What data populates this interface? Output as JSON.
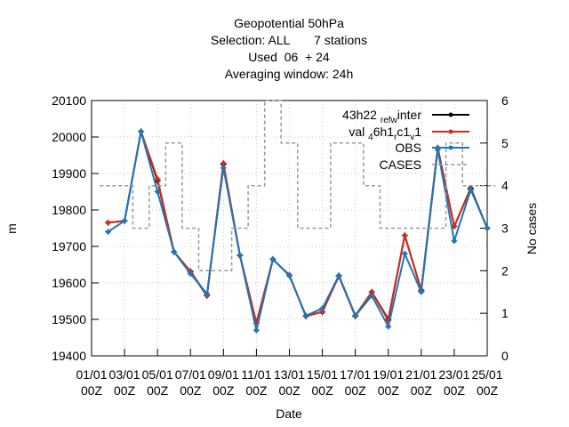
{
  "chart_data": {
    "type": "line",
    "title_lines": [
      "Geopotential 50hPa",
      "Selection: ALL       7 stations",
      "Used  06  + 24",
      "Averaging window: 24h"
    ],
    "xlabel": "Date",
    "ylabel": "m",
    "y2label": "No cases",
    "ylim": [
      19400,
      20100
    ],
    "yticks": [
      19400,
      19500,
      19600,
      19700,
      19800,
      19900,
      20000,
      20100
    ],
    "y2lim": [
      0,
      6
    ],
    "y2ticks": [
      0,
      1,
      2,
      3,
      4,
      5,
      6
    ],
    "xlim": [
      0,
      24
    ],
    "xticks": [
      {
        "x": 0,
        "top": "01/01",
        "bottom": "00Z"
      },
      {
        "x": 2,
        "top": "03/01",
        "bottom": "00Z"
      },
      {
        "x": 4,
        "top": "05/01",
        "bottom": "00Z"
      },
      {
        "x": 6,
        "top": "07/01",
        "bottom": "00Z"
      },
      {
        "x": 8,
        "top": "09/01",
        "bottom": "00Z"
      },
      {
        "x": 10,
        "top": "11/01",
        "bottom": "00Z"
      },
      {
        "x": 12,
        "top": "13/01",
        "bottom": "00Z"
      },
      {
        "x": 14,
        "top": "15/01",
        "bottom": "00Z"
      },
      {
        "x": 16,
        "top": "17/01",
        "bottom": "00Z"
      },
      {
        "x": 18,
        "top": "19/01",
        "bottom": "00Z"
      },
      {
        "x": 20,
        "top": "21/01",
        "bottom": "00Z"
      },
      {
        "x": 22,
        "top": "23/01",
        "bottom": "00Z"
      },
      {
        "x": 24,
        "top": "25/01",
        "bottom": "00Z"
      }
    ],
    "legend_position": "top-right",
    "series": [
      {
        "name": "43h22_ref_winter",
        "legend_parts": [
          "43h22",
          "ref",
          "w",
          "inter"
        ],
        "color": "#000000",
        "axis": "y1",
        "x": [
          1,
          2,
          3,
          4,
          5,
          6,
          7,
          8,
          9,
          10,
          11,
          12,
          13,
          14,
          15,
          16,
          17,
          18,
          19,
          20,
          21,
          22,
          23,
          24
        ],
        "values": [
          19765,
          19770,
          20015,
          19880,
          19685,
          19630,
          19565,
          19925,
          19675,
          19490,
          19665,
          19620,
          19510,
          19520,
          19620,
          19510,
          19575,
          19500,
          19730,
          19580,
          19970,
          19755,
          19860,
          19750
        ]
      },
      {
        "name": "val_46h1_rc1_v1",
        "legend_parts": [
          "val",
          "4",
          "6h1",
          "r",
          "c1",
          "v",
          "1"
        ],
        "color": "#d62a1e",
        "axis": "y1",
        "x": [
          1,
          2,
          3,
          4,
          5,
          6,
          7,
          8,
          9,
          10,
          11,
          12,
          13,
          14,
          15,
          16,
          17,
          18,
          19,
          20,
          21,
          22,
          23,
          24
        ],
        "values": [
          19765,
          19770,
          20015,
          19885,
          19685,
          19632,
          19566,
          19928,
          19676,
          19490,
          19664,
          19622,
          19508,
          19521,
          19618,
          19508,
          19574,
          19497,
          19730,
          19578,
          19970,
          19755,
          19858,
          19750
        ]
      },
      {
        "name": "OBS",
        "color": "#1f77b4",
        "axis": "y1",
        "x": [
          1,
          2,
          3,
          4,
          5,
          6,
          7,
          8,
          9,
          10,
          11,
          12,
          13,
          14,
          15,
          16,
          17,
          18,
          19,
          20,
          21,
          22,
          23,
          24
        ],
        "values": [
          19740,
          19770,
          20015,
          19850,
          19685,
          19625,
          19570,
          19915,
          19675,
          19470,
          19665,
          19620,
          19510,
          19530,
          19620,
          19510,
          19565,
          19480,
          19680,
          19575,
          19965,
          19715,
          19855,
          19750
        ]
      },
      {
        "name": "CASES",
        "color": "#999999",
        "axis": "y2",
        "dashed": true,
        "steps": [
          [
            1,
            4
          ],
          [
            2,
            4
          ],
          [
            3,
            3
          ],
          [
            4,
            4
          ],
          [
            5,
            5
          ],
          [
            6,
            3
          ],
          [
            7,
            2
          ],
          [
            8,
            2
          ],
          [
            9,
            3
          ],
          [
            10,
            4
          ],
          [
            11,
            6
          ],
          [
            12,
            5
          ],
          [
            13,
            3
          ],
          [
            14,
            3
          ],
          [
            15,
            5
          ],
          [
            16,
            5
          ],
          [
            17,
            4
          ],
          [
            18,
            3
          ],
          [
            19,
            3
          ],
          [
            20,
            3
          ],
          [
            21,
            3
          ],
          [
            22,
            5
          ],
          [
            23,
            4
          ],
          [
            24,
            4
          ]
        ]
      }
    ]
  }
}
